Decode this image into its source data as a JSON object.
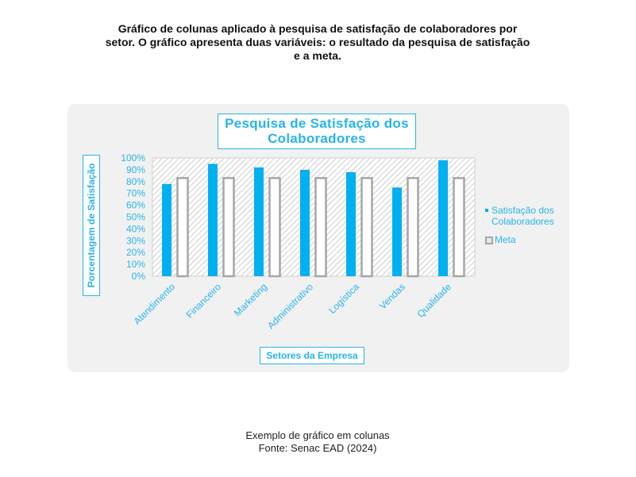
{
  "page": {
    "heading": "Gráfico de colunas aplicado à pesquisa de satisfação de colaboradores por setor. O gráfico apresenta duas variáveis: o resultado da pesquisa de satisfação e a meta.",
    "caption_line1": "Exemplo de gráfico em colunas",
    "caption_line2": "Fonte: Senac EAD (2024)"
  },
  "chart_data": {
    "type": "bar",
    "title": "Pesquisa de Satisfação dos Colaboradores",
    "xlabel": "Setores da Empresa",
    "ylabel": "Porcentagem de Satisfação",
    "categories": [
      "Atendimento",
      "Financeiro",
      "Marketing",
      "Administrativo",
      "Logística",
      "Vendas",
      "Qualidade"
    ],
    "series": [
      {
        "name": "Satisfação dos Colaboradores",
        "values": [
          78,
          95,
          92,
          90,
          88,
          75,
          98
        ],
        "color": "#00b0f0"
      },
      {
        "name": "Meta",
        "values": [
          83,
          83,
          83,
          83,
          83,
          83,
          83
        ],
        "color": "#a6a6a6"
      }
    ],
    "ylim": [
      0,
      100
    ],
    "yticks": [
      "0%",
      "10%",
      "20%",
      "30%",
      "40%",
      "50%",
      "60%",
      "70%",
      "80%",
      "90%",
      "100%"
    ],
    "legend_position": "right",
    "grid": false,
    "plot_background": "hatched"
  }
}
